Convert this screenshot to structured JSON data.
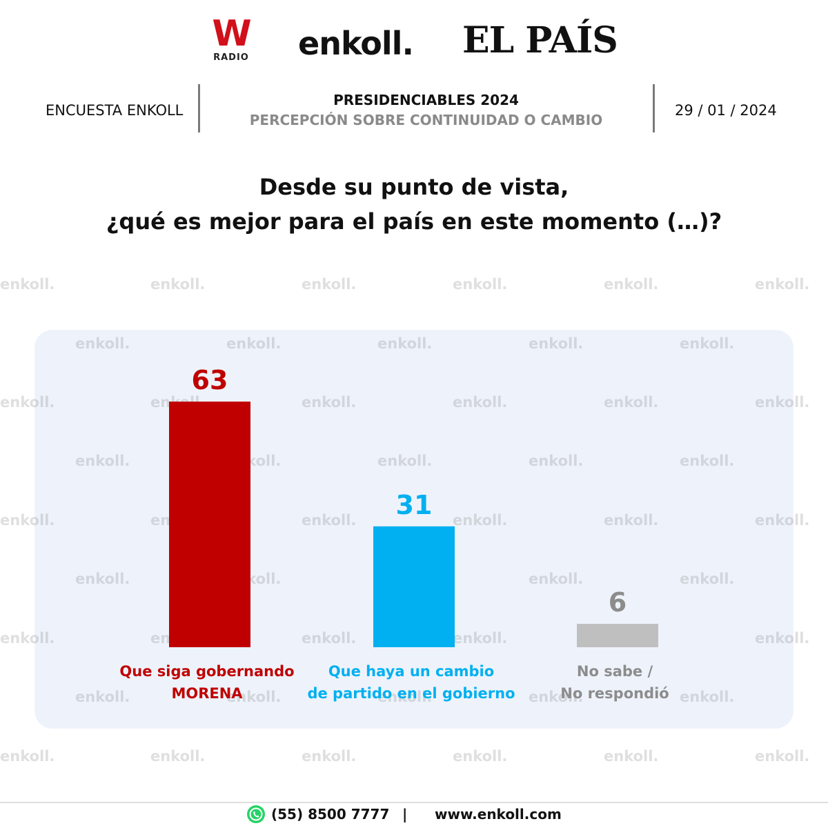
{
  "logos": {
    "w_letter": "W",
    "w_sub": "RADIO",
    "enkoll": "enkoll.",
    "pais": "EL PAÍS"
  },
  "header": {
    "left": "ENCUESTA ENKOLL",
    "title": "PRESIDENCIABLES 2024",
    "subtitle": "PERCEPCIÓN SOBRE CONTINUIDAD O CAMBIO",
    "date": "29 / 01 / 2024"
  },
  "question": {
    "line1": "Desde su punto de vista,",
    "line2": "¿qué es mejor para el país en este momento (…)?"
  },
  "watermark": "enkoll.",
  "colors": {
    "morena": "#c00000",
    "cambio": "#00b0f0",
    "nosabe": "#bfbfbf",
    "panel": "#eef3fb"
  },
  "chart_data": {
    "type": "bar",
    "categories": [
      [
        "Que siga gobernando",
        "MORENA"
      ],
      [
        "Que haya un cambio",
        "de partido en el gobierno"
      ],
      [
        "No sabe /",
        "No respondió"
      ]
    ],
    "values": [
      63,
      31,
      6
    ],
    "value_label_colors": [
      "#c00000",
      "#00b0f0",
      "#8c8c8c"
    ],
    "category_label_colors": [
      "#c00000",
      "#00b0f0",
      "#8c8c8c"
    ],
    "bar_colors": [
      "#c00000",
      "#00b0f0",
      "#bfbfbf"
    ],
    "ylim": [
      0,
      63
    ],
    "grid": false,
    "legend": "none"
  },
  "footer": {
    "phone": "(55) 8500 7777",
    "separator": "|",
    "web": "www.enkoll.com",
    "phone_icon": "whatsapp-icon"
  }
}
